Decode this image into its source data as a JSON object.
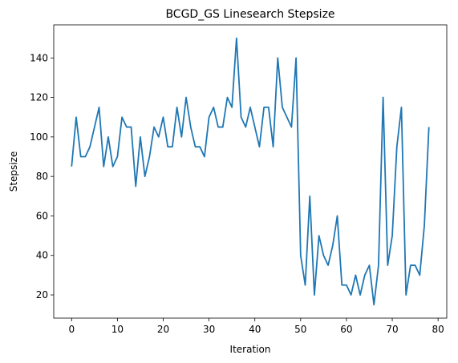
{
  "chart_data": {
    "type": "line",
    "title": "BCGD_GS Linesearch Stepsize",
    "xlabel": "Iteration",
    "ylabel": "Stepsize",
    "xlim": [
      -3.9,
      81.9
    ],
    "ylim": [
      8.25,
      156.75
    ],
    "xticks": [
      "0",
      "10",
      "20",
      "30",
      "40",
      "50",
      "60",
      "70",
      "80"
    ],
    "yticks": [
      "20",
      "40",
      "60",
      "80",
      "100",
      "120",
      "140"
    ],
    "grid": false,
    "series": [
      {
        "color": "#1f77b4",
        "x": [
          0,
          1,
          2,
          3,
          4,
          5,
          6,
          7,
          8,
          9,
          10,
          11,
          12,
          13,
          14,
          15,
          16,
          17,
          18,
          19,
          20,
          21,
          22,
          23,
          24,
          25,
          26,
          27,
          28,
          29,
          30,
          31,
          32,
          33,
          34,
          35,
          36,
          37,
          38,
          39,
          40,
          41,
          42,
          43,
          44,
          45,
          46,
          47,
          48,
          49,
          50,
          51,
          52,
          53,
          54,
          55,
          56,
          57,
          58,
          59,
          60,
          61,
          62,
          63,
          64,
          65,
          66,
          67,
          68,
          69,
          70,
          71,
          72,
          73,
          74,
          75,
          76,
          77,
          78
        ],
        "values": [
          85,
          110,
          90,
          90,
          95,
          105,
          115,
          85,
          100,
          85,
          90,
          110,
          105,
          105,
          75,
          100,
          80,
          90,
          105,
          100,
          110,
          95,
          95,
          115,
          100,
          120,
          105,
          95,
          95,
          90,
          110,
          115,
          105,
          105,
          120,
          115,
          150,
          110,
          105,
          115,
          105,
          95,
          115,
          115,
          95,
          140,
          115,
          110,
          105,
          140,
          40,
          25,
          70,
          20,
          50,
          40,
          35,
          45,
          60,
          25,
          25,
          20,
          30,
          20,
          30,
          35,
          15,
          35,
          120,
          35,
          50,
          95,
          115,
          20,
          35,
          35,
          30,
          55,
          105
        ]
      }
    ]
  }
}
